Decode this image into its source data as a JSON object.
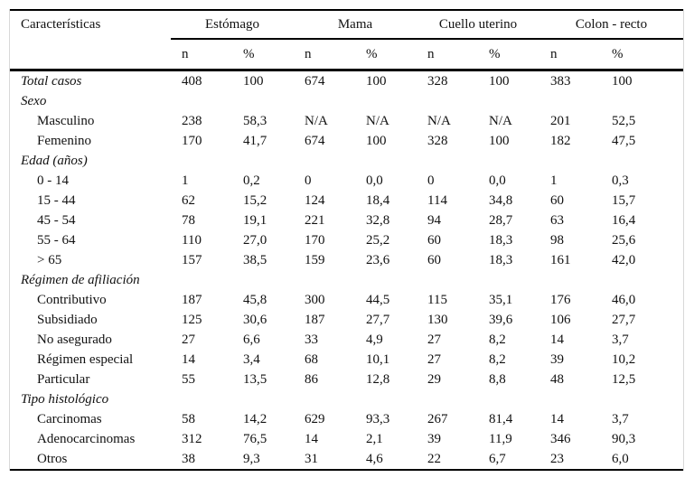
{
  "table": {
    "col1_header": "Características",
    "groups": [
      {
        "label": "Estómago"
      },
      {
        "label": "Mama"
      },
      {
        "label": "Cuello uterino"
      },
      {
        "label": "Colon - recto"
      }
    ],
    "subheaders": [
      "n",
      "%"
    ],
    "rows": [
      {
        "label": "Total casos",
        "style": "section-with-data",
        "values": [
          "408",
          "100",
          "674",
          "100",
          "328",
          "100",
          "383",
          "100"
        ]
      },
      {
        "label": "Sexo",
        "style": "section",
        "values": [
          "",
          "",
          "",
          "",
          "",
          "",
          "",
          ""
        ]
      },
      {
        "label": "Masculino",
        "style": "item",
        "values": [
          "238",
          "58,3",
          "N/A",
          "N/A",
          "N/A",
          "N/A",
          "201",
          "52,5"
        ]
      },
      {
        "label": "Femenino",
        "style": "item",
        "values": [
          "170",
          "41,7",
          "674",
          "100",
          "328",
          "100",
          "182",
          "47,5"
        ]
      },
      {
        "label": "Edad (años)",
        "style": "section",
        "values": [
          "",
          "",
          "",
          "",
          "",
          "",
          "",
          ""
        ]
      },
      {
        "label": "0 - 14",
        "style": "item",
        "values": [
          "1",
          "0,2",
          "0",
          "0,0",
          "0",
          "0,0",
          "1",
          "0,3"
        ]
      },
      {
        "label": "15 - 44",
        "style": "item",
        "values": [
          "62",
          "15,2",
          "124",
          "18,4",
          "114",
          "34,8",
          "60",
          "15,7"
        ]
      },
      {
        "label": "45 - 54",
        "style": "item",
        "values": [
          "78",
          "19,1",
          "221",
          "32,8",
          "94",
          "28,7",
          "63",
          "16,4"
        ]
      },
      {
        "label": "55 - 64",
        "style": "item",
        "values": [
          "110",
          "27,0",
          "170",
          "25,2",
          "60",
          "18,3",
          "98",
          "25,6"
        ]
      },
      {
        "label": "> 65",
        "style": "item",
        "values": [
          "157",
          "38,5",
          "159",
          "23,6",
          "60",
          "18,3",
          "161",
          "42,0"
        ]
      },
      {
        "label": "Régimen de afiliación",
        "style": "section",
        "values": [
          "",
          "",
          "",
          "",
          "",
          "",
          "",
          ""
        ]
      },
      {
        "label": "Contributivo",
        "style": "item",
        "values": [
          "187",
          "45,8",
          "300",
          "44,5",
          "115",
          "35,1",
          "176",
          "46,0"
        ]
      },
      {
        "label": "Subsidiado",
        "style": "item",
        "values": [
          "125",
          "30,6",
          "187",
          "27,7",
          "130",
          "39,6",
          "106",
          "27,7"
        ]
      },
      {
        "label": "No asegurado",
        "style": "item",
        "values": [
          "27",
          "6,6",
          "33",
          "4,9",
          "27",
          "8,2",
          "14",
          "3,7"
        ]
      },
      {
        "label": "Régimen especial",
        "style": "item",
        "values": [
          "14",
          "3,4",
          "68",
          "10,1",
          "27",
          "8,2",
          "39",
          "10,2"
        ]
      },
      {
        "label": "Particular",
        "style": "item",
        "values": [
          "55",
          "13,5",
          "86",
          "12,8",
          "29",
          "8,8",
          "48",
          "12,5"
        ]
      },
      {
        "label": "Tipo histológico",
        "style": "section",
        "values": [
          "",
          "",
          "",
          "",
          "",
          "",
          "",
          ""
        ]
      },
      {
        "label": "Carcinomas",
        "style": "item",
        "values": [
          "58",
          "14,2",
          "629",
          "93,3",
          "267",
          "81,4",
          "14",
          "3,7"
        ]
      },
      {
        "label": "Adenocarcinomas",
        "style": "item",
        "values": [
          "312",
          "76,5",
          "14",
          "2,1",
          "39",
          "11,9",
          "346",
          "90,3"
        ]
      },
      {
        "label": "Otros",
        "style": "item",
        "values": [
          "38",
          "9,3",
          "31",
          "4,6",
          "22",
          "6,7",
          "23",
          "6,0"
        ]
      }
    ]
  },
  "colors": {
    "rule": "#000000",
    "frame_border": "#d8d8d8",
    "text": "#111111",
    "background": "#ffffff"
  }
}
